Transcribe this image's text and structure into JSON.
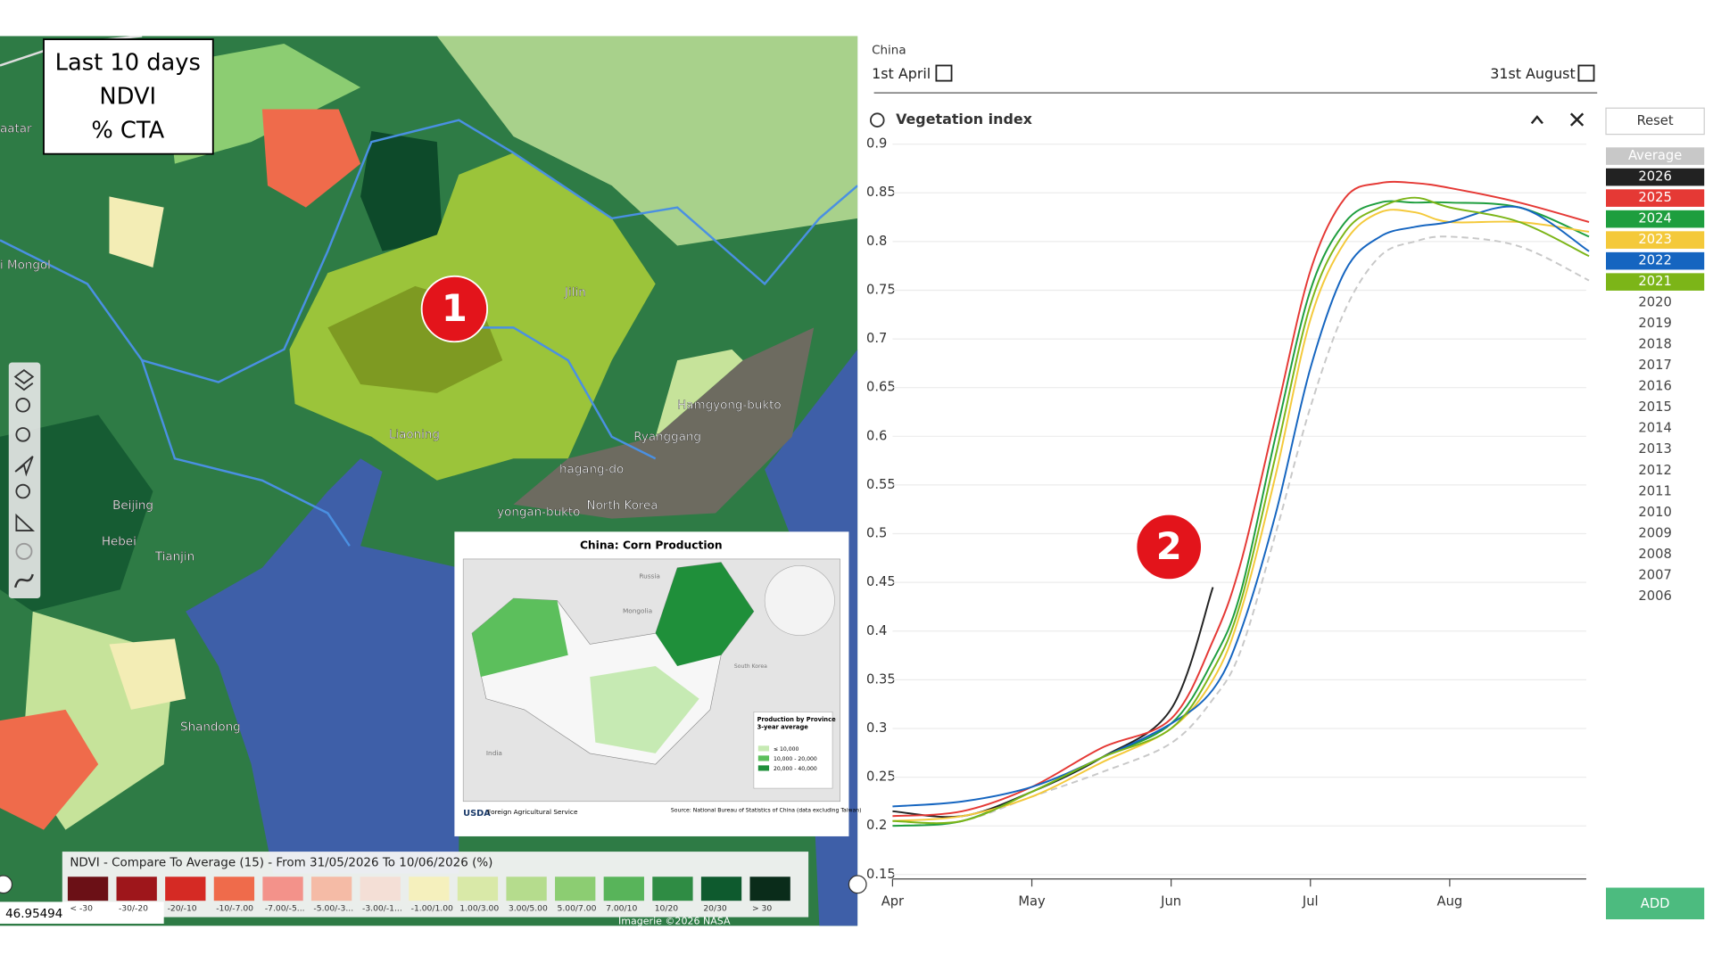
{
  "map": {
    "overlay_box": [
      "Last 10 days",
      "NDVI",
      "% CTA"
    ],
    "place_labels": [
      "Jilin",
      "Liaoning",
      "Beijing",
      "Hebei",
      "Tianjin",
      "Shandong",
      "Hamgyong-bukto",
      "Ryanggang",
      "North Korea",
      "i Mongol",
      "aatar",
      "hagang-do",
      "yongan-bukto"
    ],
    "markers": [
      "1",
      "2"
    ],
    "legend": {
      "title": "NDVI - Compare To Average (15) - From 31/05/2026 To 10/06/2026 (%)",
      "bins": [
        {
          "label": "< -30",
          "color": "#6b1016"
        },
        {
          "label": "-30/-20",
          "color": "#9e161b"
        },
        {
          "label": "-20/-10",
          "color": "#d52a24"
        },
        {
          "label": "-10/-7.00",
          "color": "#ef6b4b"
        },
        {
          "label": "-7.00/-5...",
          "color": "#f3928a"
        },
        {
          "label": "-5.00/-3...",
          "color": "#f5bba6"
        },
        {
          "label": "-3.00/-1...",
          "color": "#f4dfd6"
        },
        {
          "label": "-1.00/1.00",
          "color": "#f5f0bd"
        },
        {
          "label": "1.00/3.00",
          "color": "#d9e9a8"
        },
        {
          "label": "3.00/5.00",
          "color": "#b5dc8d"
        },
        {
          "label": "5.00/7.00",
          "color": "#8ccd72"
        },
        {
          "label": "7.00/10",
          "color": "#58b45a"
        },
        {
          "label": "10/20",
          "color": "#2f8c44"
        },
        {
          "label": "20/30",
          "color": "#0e5a2e"
        },
        {
          "label": "> 30",
          "color": "#0a2c1a"
        }
      ]
    },
    "coordinates": "46.95494",
    "attribution": "Imagerie ©2026 NASA",
    "inset": {
      "title": "China: Corn Production",
      "countries": [
        "Mongolia",
        "Russia",
        "India",
        "South Korea"
      ],
      "legend_title": "Production by Province",
      "legend_subtitle": "3-year average",
      "legend_items": [
        "≤ 10,000",
        "10,000 - 20,000",
        "20,000 - 40,000"
      ],
      "agency": "Foreign Agricultural Service",
      "source": "Source: National Bureau of Statistics of China (data excluding Taiwan)"
    }
  },
  "controls": {
    "region": "China",
    "start_date": "1st April",
    "end_date": "31st August",
    "panel_title": "Vegetation index",
    "reset": "Reset",
    "add": "ADD"
  },
  "chart_data": {
    "type": "line",
    "x": [
      0,
      0.5,
      1,
      1.5,
      2,
      2.3,
      2.5,
      2.75,
      3,
      3.25,
      3.5,
      3.75,
      4,
      4.5,
      5
    ],
    "xlim": [
      0,
      5
    ],
    "xticks": [
      {
        "value": 0,
        "label": "Apr"
      },
      {
        "value": 1,
        "label": "May"
      },
      {
        "value": 2,
        "label": "Jun"
      },
      {
        "value": 3,
        "label": "Jul"
      },
      {
        "value": 4,
        "label": "Aug"
      }
    ],
    "ylim": [
      0.15,
      0.9
    ],
    "yticks": [
      0.15,
      0.2,
      0.25,
      0.3,
      0.35,
      0.4,
      0.45,
      0.5,
      0.55,
      0.6,
      0.65,
      0.7,
      0.75,
      0.8,
      0.85,
      0.9
    ],
    "grid": true,
    "series": [
      {
        "name": "Average",
        "color": "#c8c8c8",
        "dashed": true,
        "values": [
          0.2,
          0.205,
          0.23,
          0.255,
          0.285,
          0.33,
          0.38,
          0.5,
          0.63,
          0.73,
          0.785,
          0.8,
          0.805,
          0.795,
          0.76
        ]
      },
      {
        "name": "2026",
        "color": "#222222",
        "values": [
          0.215,
          0.21,
          0.235,
          0.27,
          0.32,
          0.445,
          null,
          null,
          null,
          null,
          null,
          null,
          null,
          null,
          null
        ]
      },
      {
        "name": "2025",
        "color": "#e53935",
        "values": [
          0.21,
          0.215,
          0.24,
          0.28,
          0.31,
          0.39,
          0.47,
          0.62,
          0.77,
          0.845,
          0.86,
          0.86,
          0.855,
          0.84,
          0.82
        ]
      },
      {
        "name": "2024",
        "color": "#1e9e3e",
        "values": [
          0.2,
          0.205,
          0.235,
          0.27,
          0.305,
          0.37,
          0.44,
          0.6,
          0.75,
          0.82,
          0.84,
          0.84,
          0.84,
          0.835,
          0.805
        ]
      },
      {
        "name": "2023",
        "color": "#f4c93a",
        "values": [
          0.205,
          0.21,
          0.23,
          0.265,
          0.3,
          0.35,
          0.42,
          0.56,
          0.72,
          0.8,
          0.83,
          0.83,
          0.82,
          0.82,
          0.81
        ]
      },
      {
        "name": "2022",
        "color": "#1565c0",
        "values": [
          0.22,
          0.225,
          0.24,
          0.27,
          0.305,
          0.34,
          0.4,
          0.52,
          0.67,
          0.77,
          0.805,
          0.815,
          0.82,
          0.835,
          0.79
        ]
      },
      {
        "name": "2021",
        "color": "#7cb518",
        "values": [
          0.205,
          0.205,
          0.235,
          0.27,
          0.3,
          0.36,
          0.43,
          0.58,
          0.735,
          0.81,
          0.835,
          0.845,
          0.835,
          0.82,
          0.785
        ]
      }
    ],
    "inactive_years": [
      "2020",
      "2019",
      "2018",
      "2017",
      "2016",
      "2015",
      "2014",
      "2013",
      "2012",
      "2011",
      "2010",
      "2009",
      "2008",
      "2007",
      "2006"
    ]
  }
}
